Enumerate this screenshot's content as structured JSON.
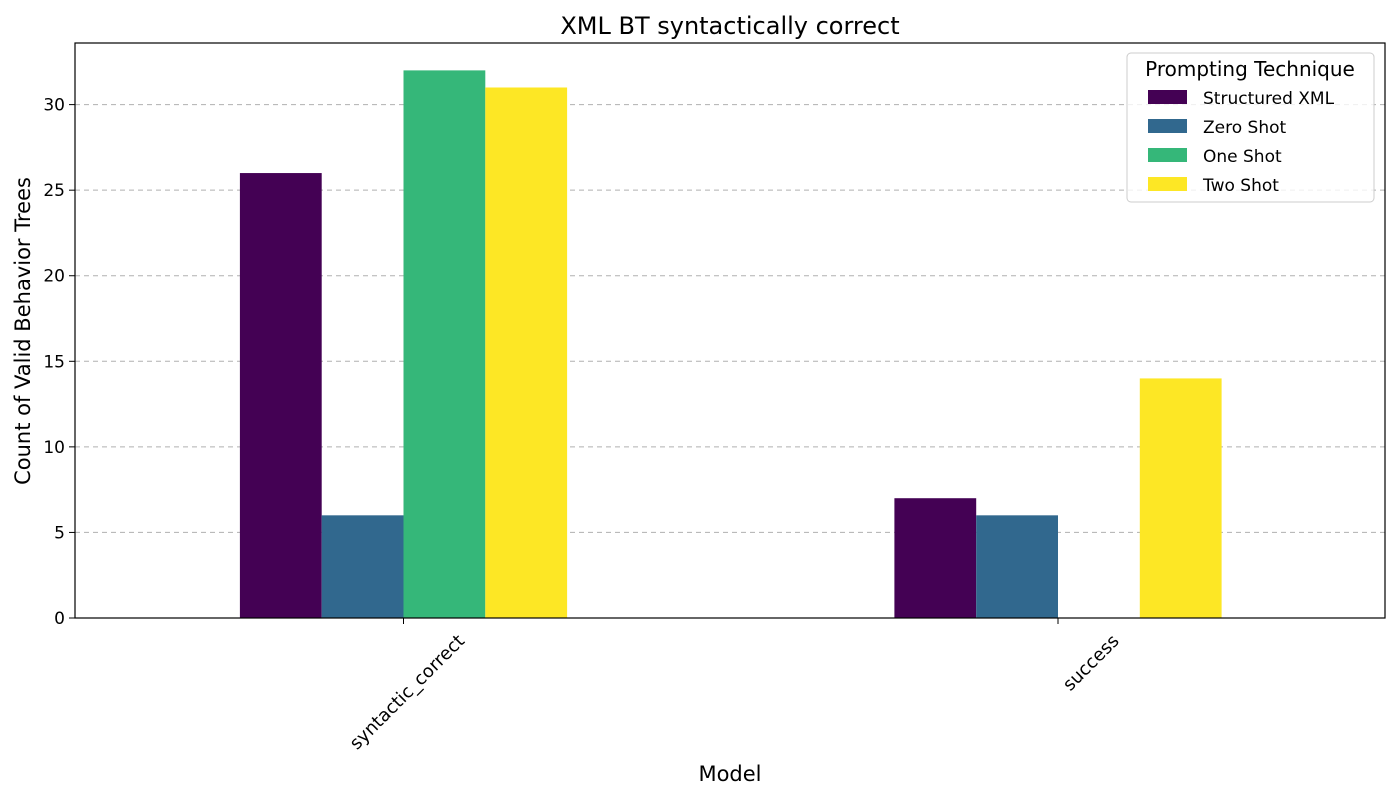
{
  "chart_data": {
    "type": "bar",
    "title": "XML BT syntactically correct",
    "xlabel": "Model",
    "ylabel": "Count of Valid Behavior Trees",
    "categories": [
      "syntactic_correct",
      "success"
    ],
    "ylim": [
      0,
      33.6
    ],
    "yticks": [
      0,
      5,
      10,
      15,
      20,
      25,
      30
    ],
    "grid": "y-dashed",
    "legend": {
      "title": "Prompting Technique",
      "placement": "top-right"
    },
    "series": [
      {
        "name": "Structured XML",
        "color": "#440154",
        "values": [
          26,
          7
        ]
      },
      {
        "name": "Zero Shot",
        "color": "#31688e",
        "values": [
          6,
          6
        ]
      },
      {
        "name": "One Shot",
        "color": "#35b779",
        "values": [
          32,
          0
        ]
      },
      {
        "name": "Two Shot",
        "color": "#fde725",
        "values": [
          31,
          14
        ]
      }
    ]
  }
}
